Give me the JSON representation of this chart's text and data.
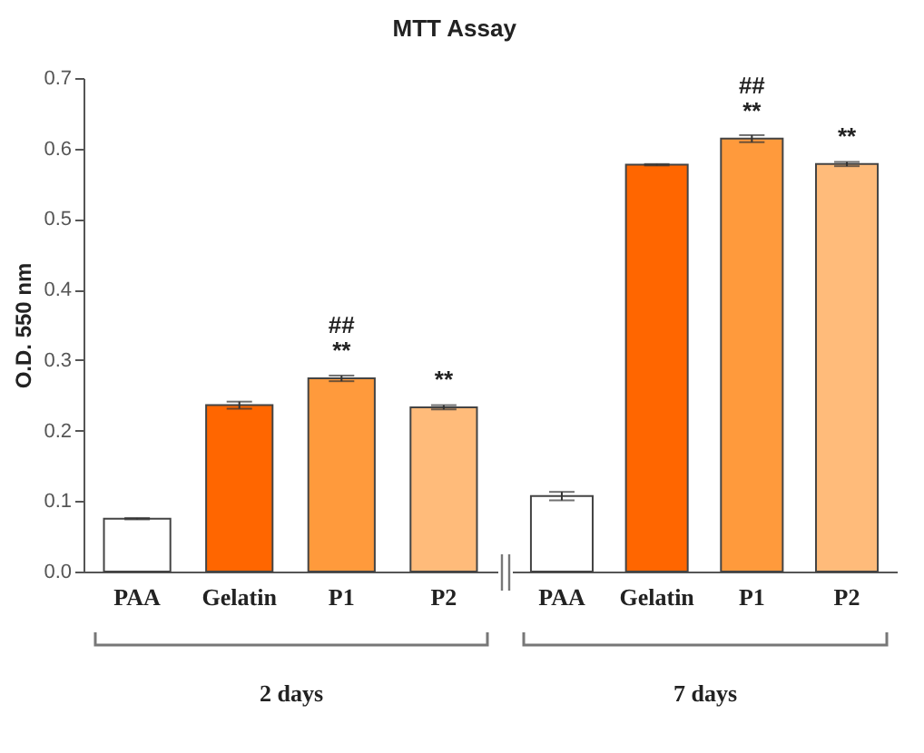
{
  "chart_data": [
    {
      "type": "bar",
      "title": "MTT Assay",
      "ylabel": "O.D. 550 nm",
      "xlabel": "2 days",
      "categories": [
        "PAA",
        "Gelatin",
        "P1",
        "P2"
      ],
      "values": [
        0.075,
        0.236,
        0.274,
        0.233
      ],
      "errors": [
        0.001,
        0.005,
        0.004,
        0.003
      ],
      "colors": [
        "#ffffff",
        "#ff6600",
        "#ff9a3c",
        "#ffbb7a"
      ],
      "ylim": [
        0,
        0.7
      ],
      "yticks": [
        {
          "value": 0,
          "label": "0.0"
        },
        0.1,
        0.2,
        0.3,
        0.4,
        0.5,
        0.6,
        0.7
      ],
      "annotations": [
        {
          "text": "**",
          "x": "P1",
          "y": 0.274
        },
        {
          "text": "##",
          "x": "P1",
          "y": 0.274
        },
        {
          "text": "**",
          "x": "P2",
          "y": 0.233
        }
      ]
    },
    {
      "type": "bar",
      "xlabel": "7 days",
      "categories": [
        "PAA",
        "Gelatin",
        "P1",
        "P2"
      ],
      "values": [
        0.107,
        0.577,
        0.614,
        0.578
      ],
      "errors": [
        0.006,
        0.001,
        0.005,
        0.003
      ],
      "colors": [
        "#ffffff",
        "#ff6600",
        "#ff9a3c",
        "#ffbb7a"
      ],
      "ylim": [
        0,
        0.7
      ],
      "tick_labels": "x",
      "annotations": [
        {
          "text": "**",
          "x": "P1",
          "y": 0.614
        },
        {
          "text": "##",
          "x": "P1",
          "y": 0.614
        },
        {
          "text": "**",
          "x": "P2",
          "y": 0.578
        }
      ]
    }
  ]
}
